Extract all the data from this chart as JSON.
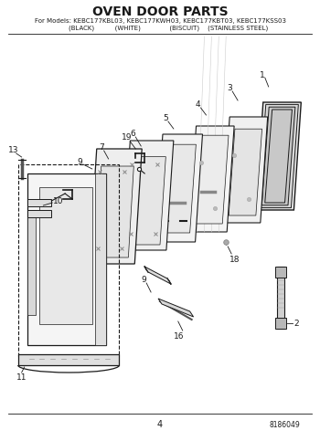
{
  "title": "OVEN DOOR PARTS",
  "subtitle_line1": "For Models: KEBC177KBL03, KEBC177KWH03, KEBC177KBT03, KEBC177KSS03",
  "subtitle_line2": "        (BLACK)          (WHITE)              (BISCUIT)    (STAINLESS STEEL)",
  "page_number": "4",
  "part_number": "8186049",
  "bg_color": "#ffffff",
  "lc": "#1a1a1a",
  "title_fontsize": 10,
  "sub_fontsize": 5.0,
  "label_fontsize": 6.5
}
